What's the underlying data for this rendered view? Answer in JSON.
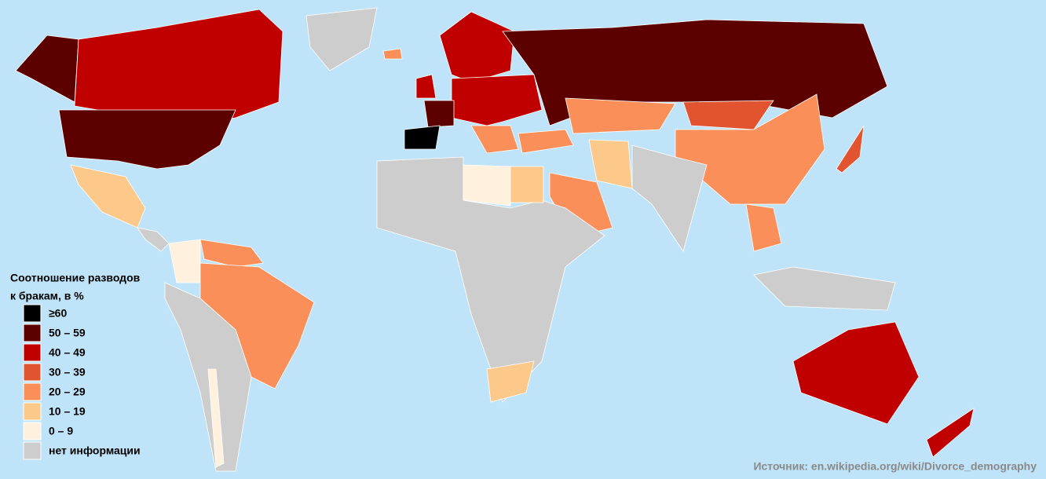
{
  "legend": {
    "title": [
      "Соотношение разводов",
      "к бракам, в %"
    ],
    "items": [
      {
        "label": "≥60",
        "color": "#000000"
      },
      {
        "label": "50 – 59",
        "color": "#5c0000"
      },
      {
        "label": "40 – 49",
        "color": "#c00000"
      },
      {
        "label": "30 – 39",
        "color": "#e2532f"
      },
      {
        "label": "20 – 29",
        "color": "#fa8f5a"
      },
      {
        "label": "10 – 19",
        "color": "#fdc98a"
      },
      {
        "label": "0 – 9",
        "color": "#fff1dd"
      },
      {
        "label": "нет информации",
        "color": "#cdcdcd"
      }
    ]
  },
  "source": "Источник: en.wikipedia.org/wiki/Divorce_demography"
}
